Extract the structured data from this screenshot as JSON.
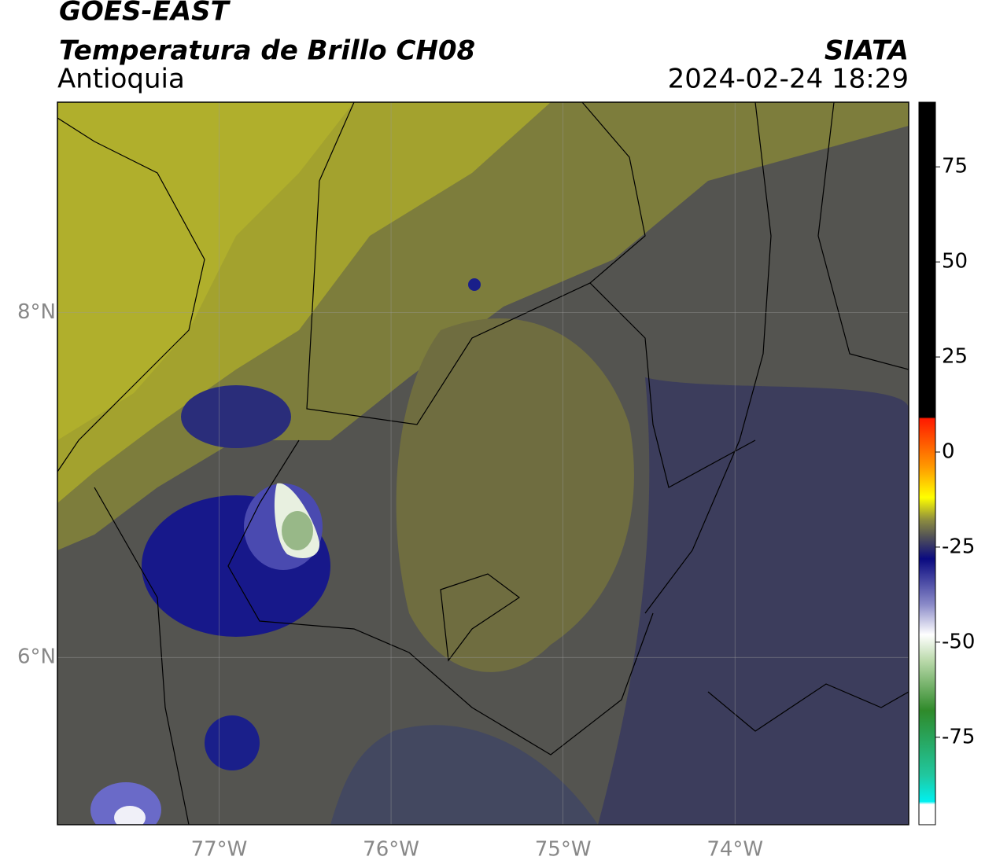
{
  "header": {
    "title": "GOES-EAST",
    "subtitle": "Temperatura de Brillo CH08",
    "region": "Antioquia",
    "source": "SIATA",
    "datetime": "2024-02-24 18:29"
  },
  "map": {
    "xlim": [
      -77.94,
      -72.99
    ],
    "ylim": [
      5.03,
      9.22
    ],
    "xticks": [
      {
        "value": -77,
        "label": "77°W"
      },
      {
        "value": -76,
        "label": "76°W"
      },
      {
        "value": -75,
        "label": "75°W"
      },
      {
        "value": -74,
        "label": "74°W"
      }
    ],
    "yticks": [
      {
        "value": 6,
        "label": "6°N"
      },
      {
        "value": 8,
        "label": "8°N"
      }
    ],
    "grid": true
  },
  "colorbar": {
    "lim": [
      -98,
      92
    ],
    "ticks": [
      -75,
      -50,
      -25,
      0,
      25,
      50,
      75
    ]
  }
}
